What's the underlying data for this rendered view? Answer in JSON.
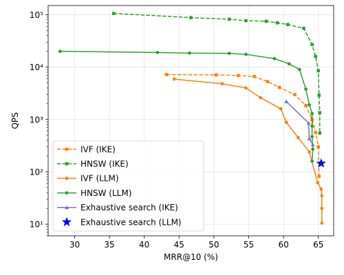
{
  "chart_data": {
    "type": "line",
    "xlabel": "MRR@10 (%)",
    "ylabel": "QPS",
    "xlim": [
      26.2,
      67.2
    ],
    "ylim": [
      6.0,
      150000
    ],
    "yscale": "log",
    "grid": true,
    "legend_placement": "lower-left",
    "xticks": [
      30,
      35,
      40,
      45,
      50,
      55,
      60,
      65
    ],
    "xtick_labels": [
      "30",
      "35",
      "40",
      "45",
      "50",
      "55",
      "60",
      "65"
    ],
    "yticks": [
      10,
      100,
      1000,
      10000,
      100000
    ],
    "ytick_labels": [
      "10¹",
      "10²",
      "10³",
      "10⁴",
      "10⁵"
    ],
    "series": [
      {
        "name": "IVF (IKE)",
        "color": "#ff7f0e",
        "dash": true,
        "marker": "square",
        "x": [
          43.2,
          50.3,
          53.5,
          55.8,
          57.7,
          59.4,
          61.6,
          63.2,
          64.1,
          64.6,
          65.0,
          65.1
        ],
        "y": [
          7200,
          7100,
          6900,
          6600,
          5300,
          4100,
          3000,
          1850,
          1000,
          560,
          300,
          82
        ]
      },
      {
        "name": "HNSW (IKE)",
        "color": "#2ca02c",
        "dash": true,
        "marker": "square",
        "x": [
          35.6,
          46.7,
          52.2,
          54.6,
          57.5,
          59.1,
          60.6,
          62.9,
          64.1,
          64.6,
          65.0,
          65.1,
          65.2,
          65.2
        ],
        "y": [
          106000,
          88000,
          82000,
          77000,
          75000,
          70000,
          65000,
          55000,
          27000,
          16000,
          8500,
          2900,
          1350,
          550
        ]
      },
      {
        "name": "IVF (LLM)",
        "color": "#ff7f0e",
        "dash": false,
        "marker": "circle",
        "x": [
          44.3,
          51.2,
          54.6,
          56.7,
          59.6,
          60.4,
          62.1,
          63.7,
          64.9,
          65.4,
          65.5,
          65.5,
          65.5
        ],
        "y": [
          5900,
          4800,
          4000,
          2600,
          1600,
          880,
          450,
          240,
          62,
          47,
          35,
          20,
          10.5
        ]
      },
      {
        "name": "HNSW (LLM)",
        "color": "#2ca02c",
        "dash": false,
        "marker": "circle",
        "x": [
          27.9,
          41.9,
          46.5,
          52.2,
          54.6,
          58.7,
          60.8,
          62.3,
          63.2,
          63.7,
          64.1,
          64.1,
          64.1,
          64.2,
          64.1
        ],
        "y": [
          20000,
          19000,
          18500,
          18300,
          17500,
          14500,
          11500,
          9000,
          3800,
          1900,
          1300,
          750,
          470,
          270,
          160
        ]
      },
      {
        "name": "Exhaustive search (IKE)",
        "color": "#8172b2",
        "dash": false,
        "marker": "triangle",
        "x": [
          60.4,
          63.6,
          63.7,
          64.2
        ],
        "y": [
          2200,
          850,
          430,
          330
        ]
      },
      {
        "name": "Exhaustive search (LLM)",
        "color": "#0000ff",
        "dash": false,
        "marker": "star",
        "x": [
          65.4
        ],
        "y": [
          145
        ]
      }
    ]
  }
}
